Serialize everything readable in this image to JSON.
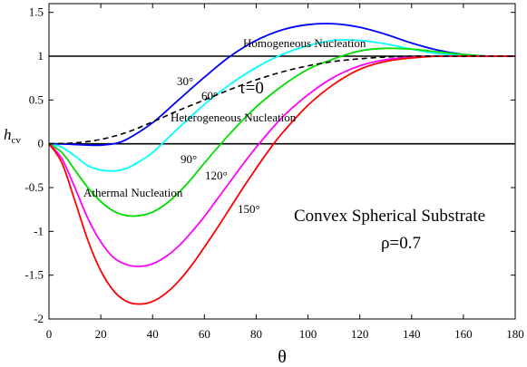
{
  "chart_data": {
    "type": "line",
    "xlabel": "θ",
    "ylabel": "h",
    "ylabel_sub": "cv",
    "xlim": [
      0,
      180
    ],
    "ylim": [
      -2,
      1.6
    ],
    "xticks": [
      0,
      20,
      40,
      60,
      80,
      100,
      120,
      140,
      160,
      180
    ],
    "yticks": [
      -2,
      -1.5,
      -1,
      -0.5,
      0,
      0.5,
      1,
      1.5
    ],
    "ytick_labels": [
      "-2",
      "-1.5",
      "-1",
      "-0.5",
      "0",
      "0.5",
      "1",
      "1.5"
    ],
    "reference_lines": [
      0,
      1
    ],
    "grid": false,
    "series": [
      {
        "label": "30°",
        "color": "#0000ff",
        "dash": false,
        "x": [
          0,
          5,
          10,
          15,
          20,
          25,
          30,
          40,
          50,
          60,
          70,
          80,
          90,
          100,
          110,
          120,
          130,
          140,
          150,
          160,
          170,
          180
        ],
        "y": [
          0,
          -0.002,
          -0.008,
          -0.015,
          -0.016,
          0.0,
          0.05,
          0.24,
          0.5,
          0.76,
          1.0,
          1.18,
          1.3,
          1.36,
          1.37,
          1.33,
          1.25,
          1.15,
          1.07,
          1.02,
          1.0,
          1.0
        ]
      },
      {
        "label": "60°",
        "color": "#00ffff",
        "dash": false,
        "x": [
          0,
          5,
          10,
          15,
          20,
          25,
          30,
          35,
          40,
          50,
          60,
          70,
          80,
          90,
          100,
          110,
          120,
          130,
          140,
          150,
          160,
          170,
          180
        ],
        "y": [
          0,
          -0.04,
          -0.14,
          -0.25,
          -0.3,
          -0.31,
          -0.28,
          -0.2,
          -0.1,
          0.18,
          0.45,
          0.68,
          0.87,
          1.02,
          1.12,
          1.18,
          1.18,
          1.14,
          1.08,
          1.03,
          1.01,
          1.0,
          1.0
        ]
      },
      {
        "label": "90°",
        "color": "#00dd00",
        "dash": false,
        "x": [
          0,
          5,
          10,
          15,
          20,
          25,
          30,
          35,
          40,
          45,
          50,
          55,
          60,
          70,
          80,
          90,
          100,
          110,
          120,
          130,
          140,
          150,
          160,
          170,
          180
        ],
        "y": [
          0,
          -0.1,
          -0.3,
          -0.5,
          -0.66,
          -0.77,
          -0.82,
          -0.82,
          -0.78,
          -0.69,
          -0.56,
          -0.4,
          -0.22,
          0.12,
          0.42,
          0.66,
          0.85,
          0.97,
          1.06,
          1.09,
          1.08,
          1.05,
          1.02,
          1.0,
          1.0
        ]
      },
      {
        "label": "120°",
        "color": "#ff00ff",
        "dash": false,
        "x": [
          0,
          5,
          10,
          15,
          20,
          25,
          30,
          35,
          40,
          45,
          50,
          55,
          60,
          65,
          70,
          75,
          80,
          90,
          100,
          110,
          120,
          130,
          140,
          150,
          160,
          170,
          180
        ],
        "y": [
          0,
          -0.17,
          -0.5,
          -0.85,
          -1.12,
          -1.3,
          -1.38,
          -1.4,
          -1.37,
          -1.29,
          -1.17,
          -1.01,
          -0.83,
          -0.63,
          -0.43,
          -0.23,
          -0.04,
          0.3,
          0.56,
          0.76,
          0.89,
          0.96,
          0.99,
          1.0,
          1.0,
          1.0,
          1.0
        ]
      },
      {
        "label": "150°",
        "color": "#ff0000",
        "dash": false,
        "x": [
          0,
          5,
          10,
          15,
          20,
          25,
          30,
          35,
          40,
          45,
          50,
          55,
          60,
          65,
          70,
          75,
          80,
          85,
          90,
          100,
          110,
          120,
          130,
          140,
          150,
          160,
          170,
          180
        ],
        "y": [
          0,
          -0.22,
          -0.65,
          -1.1,
          -1.45,
          -1.68,
          -1.8,
          -1.83,
          -1.8,
          -1.71,
          -1.57,
          -1.39,
          -1.18,
          -0.96,
          -0.73,
          -0.5,
          -0.28,
          -0.07,
          0.12,
          0.44,
          0.68,
          0.85,
          0.94,
          0.98,
          1.0,
          1.0,
          1.0,
          1.0
        ]
      },
      {
        "label": "τ=0",
        "color": "#000000",
        "dash": true,
        "x": [
          0,
          10,
          20,
          30,
          40,
          50,
          60,
          70,
          80,
          90,
          100,
          110,
          120,
          130,
          140,
          150,
          160,
          170,
          180
        ],
        "y": [
          0,
          0.01,
          0.05,
          0.13,
          0.25,
          0.38,
          0.5,
          0.62,
          0.73,
          0.82,
          0.89,
          0.94,
          0.97,
          0.99,
          1.0,
          1.0,
          1.0,
          1.0,
          1.0
        ]
      }
    ],
    "annotations": {
      "homogeneous": "Homogeneous Nucleation",
      "heterogeneous": "Heterogeneous Nucleation",
      "athermal": "Athermal Nucleation",
      "substrate": "Convex Spherical Substrate",
      "rho": "ρ=0.7"
    }
  }
}
